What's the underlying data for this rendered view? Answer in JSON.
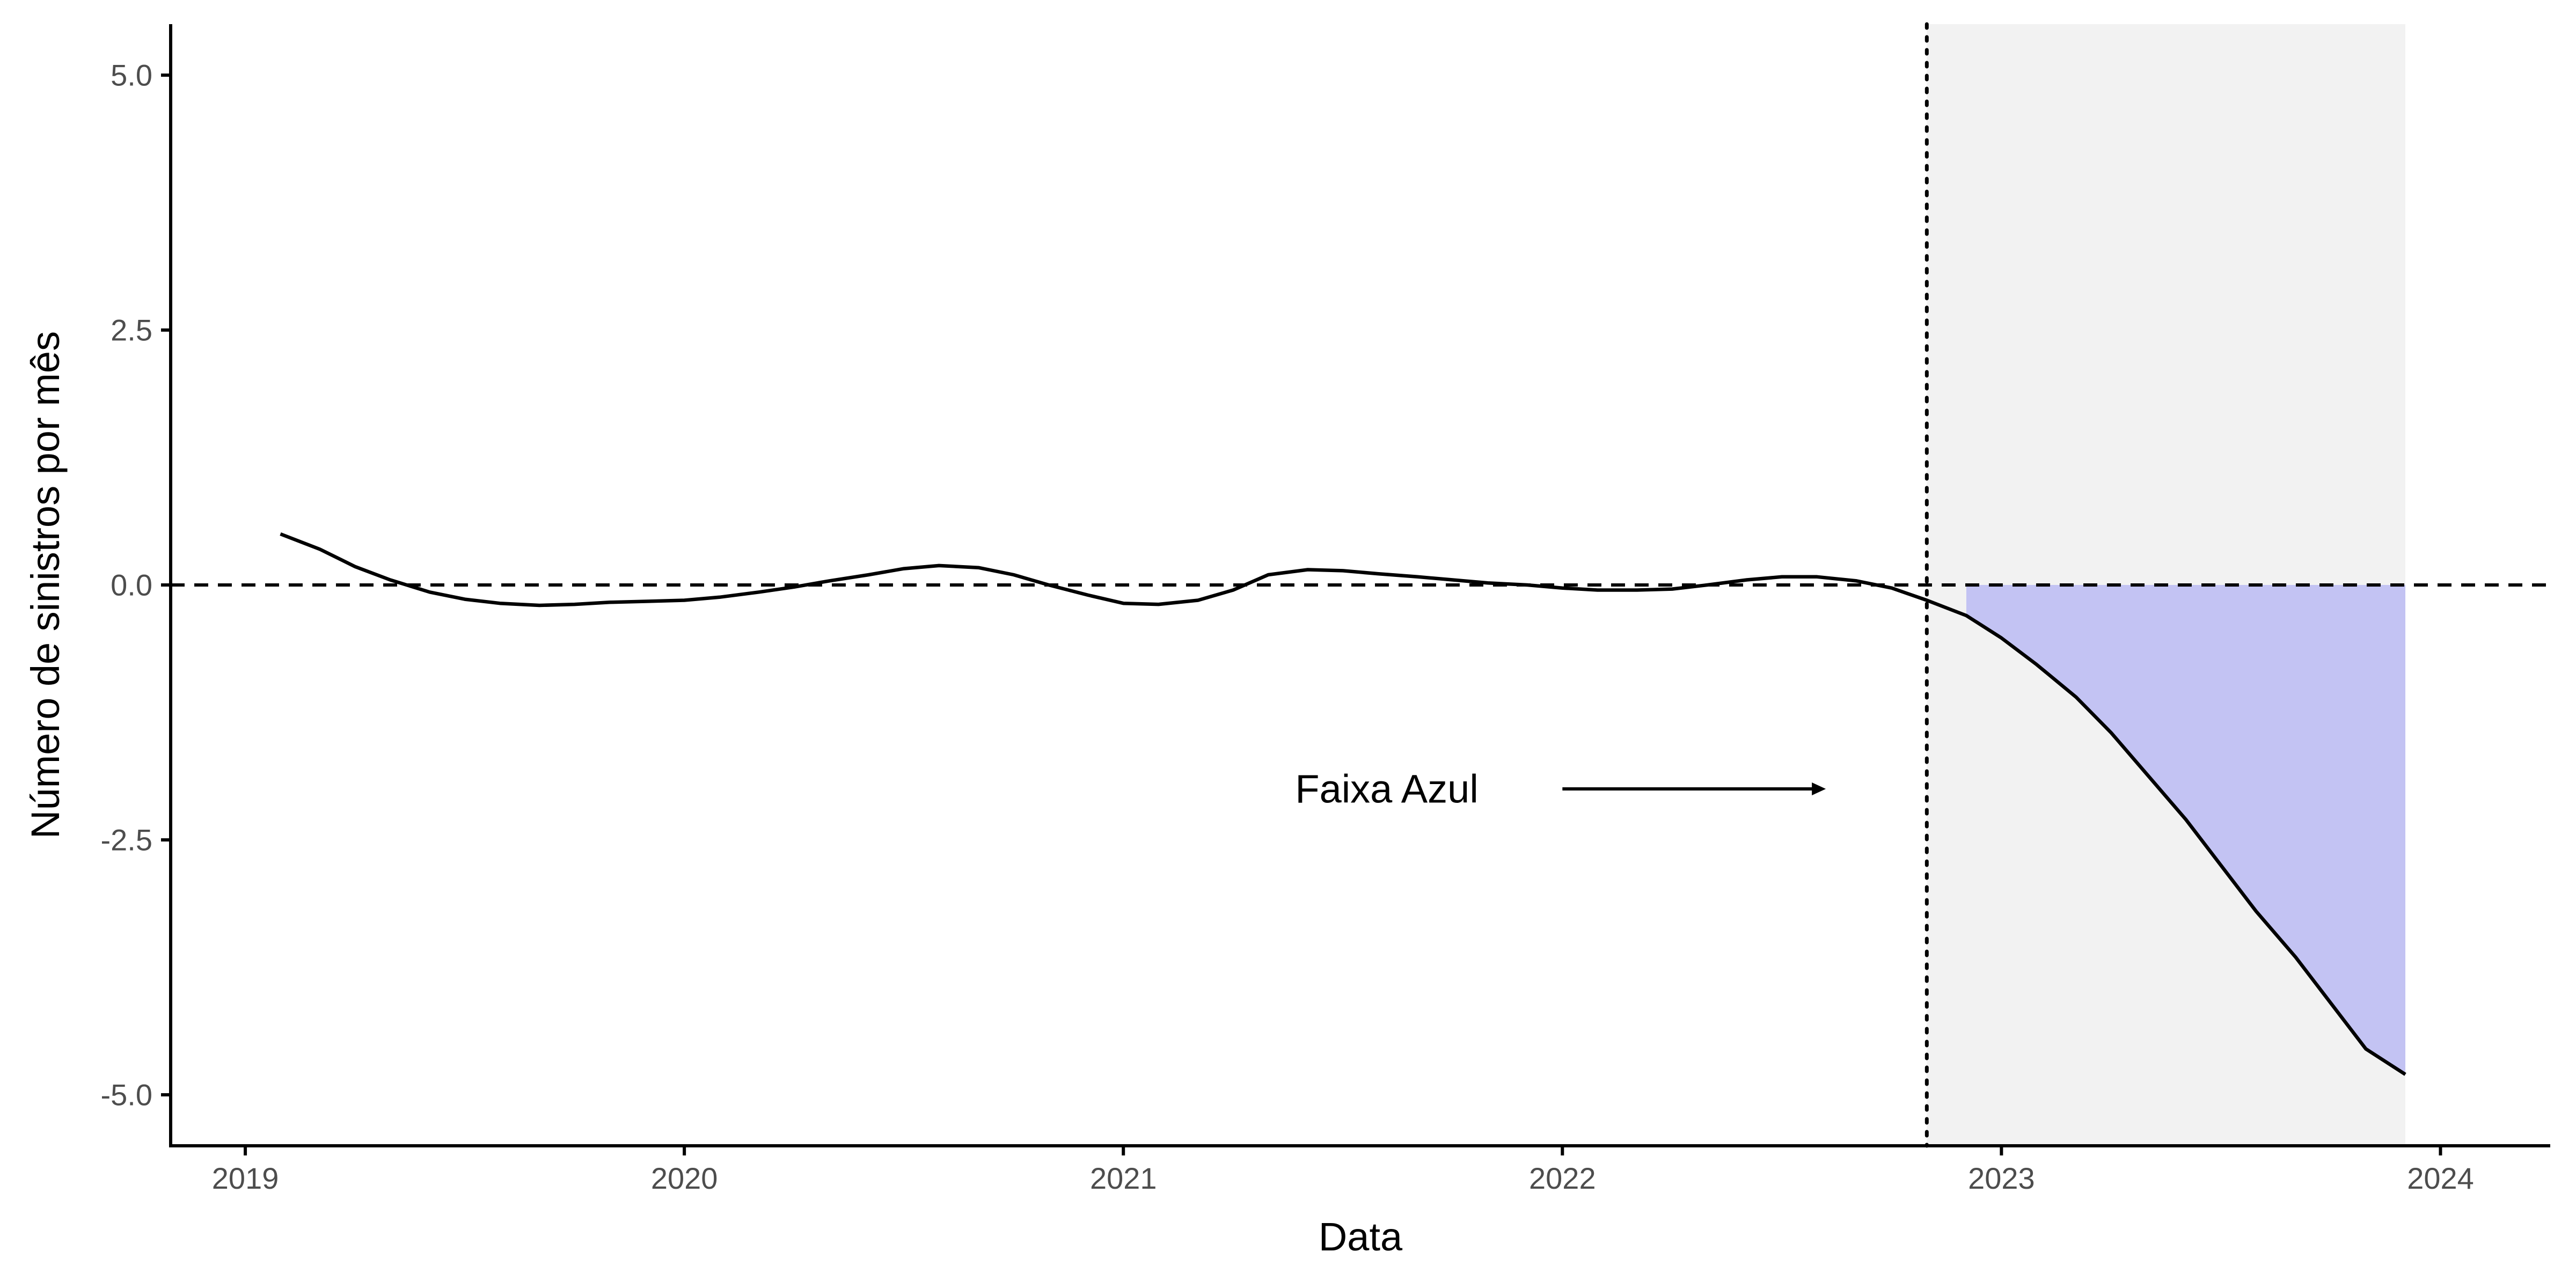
{
  "chart_data": {
    "type": "line",
    "title": "",
    "xlabel": "Data",
    "ylabel": "Número de sinistros por mês",
    "xlim": [
      2018.83,
      2024.25
    ],
    "ylim": [
      -5.5,
      5.5
    ],
    "x_ticks": [
      {
        "value": 2019,
        "label": "2019"
      },
      {
        "value": 2020,
        "label": "2020"
      },
      {
        "value": 2021,
        "label": "2021"
      },
      {
        "value": 2022,
        "label": "2022"
      },
      {
        "value": 2023,
        "label": "2023"
      },
      {
        "value": 2024,
        "label": "2024"
      }
    ],
    "y_ticks": [
      {
        "value": 5.0,
        "label": "5.0"
      },
      {
        "value": 2.5,
        "label": "2.5"
      },
      {
        "value": 0.0,
        "label": "0.0"
      },
      {
        "value": -2.5,
        "label": "-2.5"
      },
      {
        "value": -5.0,
        "label": "-5.0"
      }
    ],
    "grid": false,
    "series": [
      {
        "x": [
          2019.08,
          2019.17,
          2019.25,
          2019.33,
          2019.42,
          2019.5,
          2019.58,
          2019.67,
          2019.75,
          2019.83,
          2019.92,
          2020.0,
          2020.08,
          2020.17,
          2020.25,
          2020.33,
          2020.42,
          2020.5,
          2020.58,
          2020.67,
          2020.75,
          2020.83,
          2020.92,
          2021.0,
          2021.08,
          2021.17,
          2021.25,
          2021.33,
          2021.42,
          2021.5,
          2021.58,
          2021.67,
          2021.75,
          2021.83,
          2021.92,
          2022.0,
          2022.08,
          2022.17,
          2022.25,
          2022.33,
          2022.42,
          2022.5,
          2022.58,
          2022.67,
          2022.75,
          2022.83,
          2022.92,
          2023.0,
          2023.08,
          2023.17,
          2023.25,
          2023.33,
          2023.42,
          2023.5,
          2023.58,
          2023.67,
          2023.75,
          2023.83,
          2023.92
        ],
        "y": [
          0.5,
          0.35,
          0.18,
          0.05,
          -0.07,
          -0.14,
          -0.18,
          -0.2,
          -0.19,
          -0.17,
          -0.16,
          -0.15,
          -0.12,
          -0.07,
          -0.02,
          0.04,
          0.1,
          0.16,
          0.19,
          0.17,
          0.1,
          0.0,
          -0.1,
          -0.18,
          -0.19,
          -0.15,
          -0.05,
          0.1,
          0.15,
          0.14,
          0.11,
          0.08,
          0.05,
          0.02,
          0.0,
          -0.03,
          -0.05,
          -0.05,
          -0.04,
          0.0,
          0.05,
          0.08,
          0.08,
          0.04,
          -0.03,
          -0.15,
          -0.3,
          -0.52,
          -0.78,
          -1.1,
          -1.45,
          -1.85,
          -2.3,
          -2.75,
          -3.2,
          -3.65,
          -4.1,
          -4.55,
          -4.8
        ]
      }
    ],
    "reference_lines": {
      "horizontal_dashed_y": 0.0,
      "vertical_dotted_x": 2022.83
    },
    "shaded_region": {
      "x_start": 2022.83,
      "x_end": 2023.92,
      "color": "#f2f2f2"
    },
    "fill_between_zero": {
      "x_start": 2022.92,
      "x_end": 2023.92,
      "color": "#c3c3f3"
    },
    "annotation": {
      "text": "Faixa Azul",
      "text_x": 2021.6,
      "text_y": -2.0,
      "arrow_from_x": 2022.0,
      "arrow_to_x": 2022.6,
      "arrow_y": -2.0
    },
    "colors": {
      "line": "#000000",
      "axis": "#000000",
      "tick_text": "#4d4d4d",
      "shade": "#f2f2f2",
      "fill": "#c3c3f3"
    }
  }
}
